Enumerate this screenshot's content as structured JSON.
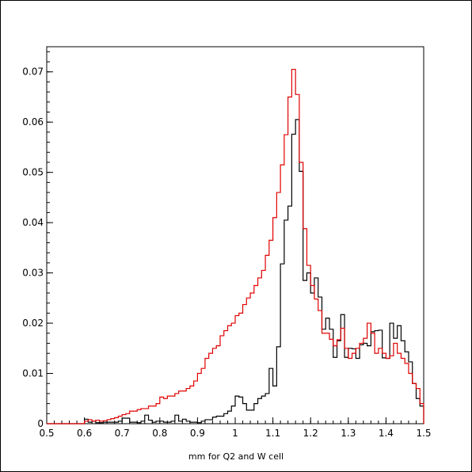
{
  "chart_data": {
    "type": "line",
    "title": "",
    "xlabel": "mm for Q2 and W cell",
    "ylabel": "",
    "xlim": [
      0.5,
      1.5
    ],
    "ylim": [
      0,
      0.075
    ],
    "x_ticks": [
      0.5,
      0.6,
      0.7,
      0.8,
      0.9,
      1.0,
      1.1,
      1.2,
      1.3,
      1.4,
      1.5
    ],
    "x_tick_labels": [
      "0.5",
      "0.6",
      "0.7",
      "0.8",
      "0.9",
      "1",
      "1.1",
      "1.2",
      "1.3",
      "1.4",
      "1.5"
    ],
    "y_ticks": [
      0,
      0.01,
      0.02,
      0.03,
      0.04,
      0.05,
      0.06,
      0.07
    ],
    "y_tick_labels": [
      "0",
      "0.01",
      "0.02",
      "0.03",
      "0.04",
      "0.05",
      "0.06",
      "0.07"
    ],
    "bins": {
      "start": 0.5,
      "width": 0.01,
      "count": 100
    },
    "grid": false,
    "legend": "none",
    "series": [
      {
        "color": "#000000",
        "values": [
          0,
          0,
          0,
          0,
          0,
          0,
          0,
          0,
          0,
          0,
          0.0009,
          0.0003,
          0.0005,
          0.0002,
          0.0002,
          0.0003,
          0.0003,
          0.0003,
          0.0003,
          0.0005,
          0.0011,
          0.0011,
          0.0003,
          0.0003,
          0.0002,
          0.0005,
          0.0017,
          0.0007,
          0.0003,
          0.0005,
          0.0005,
          0.0003,
          0.0003,
          0.0005,
          0.0017,
          0.0005,
          0.0009,
          0.0005,
          0.0003,
          0.0003,
          0.0002,
          0.0005,
          0.0008,
          0.0008,
          0.0013,
          0.0015,
          0.0015,
          0.002,
          0.0025,
          0.0035,
          0.0055,
          0.0053,
          0.004,
          0.0027,
          0.0027,
          0.004,
          0.005,
          0.0055,
          0.006,
          0.011,
          0.0075,
          0.0153,
          0.0318,
          0.0405,
          0.0433,
          0.0576,
          0.0605,
          0.0502,
          0.0285,
          0.03,
          0.026,
          0.029,
          0.0252,
          0.0188,
          0.021,
          0.0188,
          0.0132,
          0.0165,
          0.0217,
          0.0132,
          0.015,
          0.0149,
          0.013,
          0.0157,
          0.016,
          0.0155,
          0.0183,
          0.0185,
          0.0186,
          0.0131,
          0.013,
          0.02,
          0.017,
          0.0195,
          0.0165,
          0.0143,
          0.0123,
          0.008,
          0.005,
          0.0035
        ]
      },
      {
        "color": "#e00000",
        "values": [
          0,
          0,
          0,
          0,
          0,
          0,
          0,
          0,
          0,
          0,
          0.0005,
          0.0008,
          0.0005,
          0.0007,
          0.0005,
          0.0006,
          0.0008,
          0.001,
          0.0012,
          0.0015,
          0.0018,
          0.002,
          0.0025,
          0.0025,
          0.0028,
          0.003,
          0.003,
          0.0035,
          0.0035,
          0.004,
          0.0053,
          0.005,
          0.0055,
          0.0055,
          0.006,
          0.0065,
          0.0065,
          0.007,
          0.0075,
          0.0085,
          0.01,
          0.011,
          0.013,
          0.014,
          0.015,
          0.0155,
          0.0175,
          0.0185,
          0.0195,
          0.02,
          0.0215,
          0.022,
          0.0237,
          0.025,
          0.026,
          0.0275,
          0.029,
          0.0305,
          0.0335,
          0.0365,
          0.041,
          0.046,
          0.0515,
          0.0575,
          0.065,
          0.0705,
          0.0655,
          0.052,
          0.0388,
          0.0315,
          0.0275,
          0.0248,
          0.0225,
          0.018,
          0.018,
          0.0168,
          0.0155,
          0.0167,
          0.019,
          0.015,
          0.013,
          0.014,
          0.015,
          0.016,
          0.017,
          0.02,
          0.018,
          0.014,
          0.015,
          0.014,
          0.013,
          0.0135,
          0.016,
          0.014,
          0.013,
          0.012,
          0.01,
          0.008,
          0.007,
          0.004
        ]
      }
    ]
  }
}
